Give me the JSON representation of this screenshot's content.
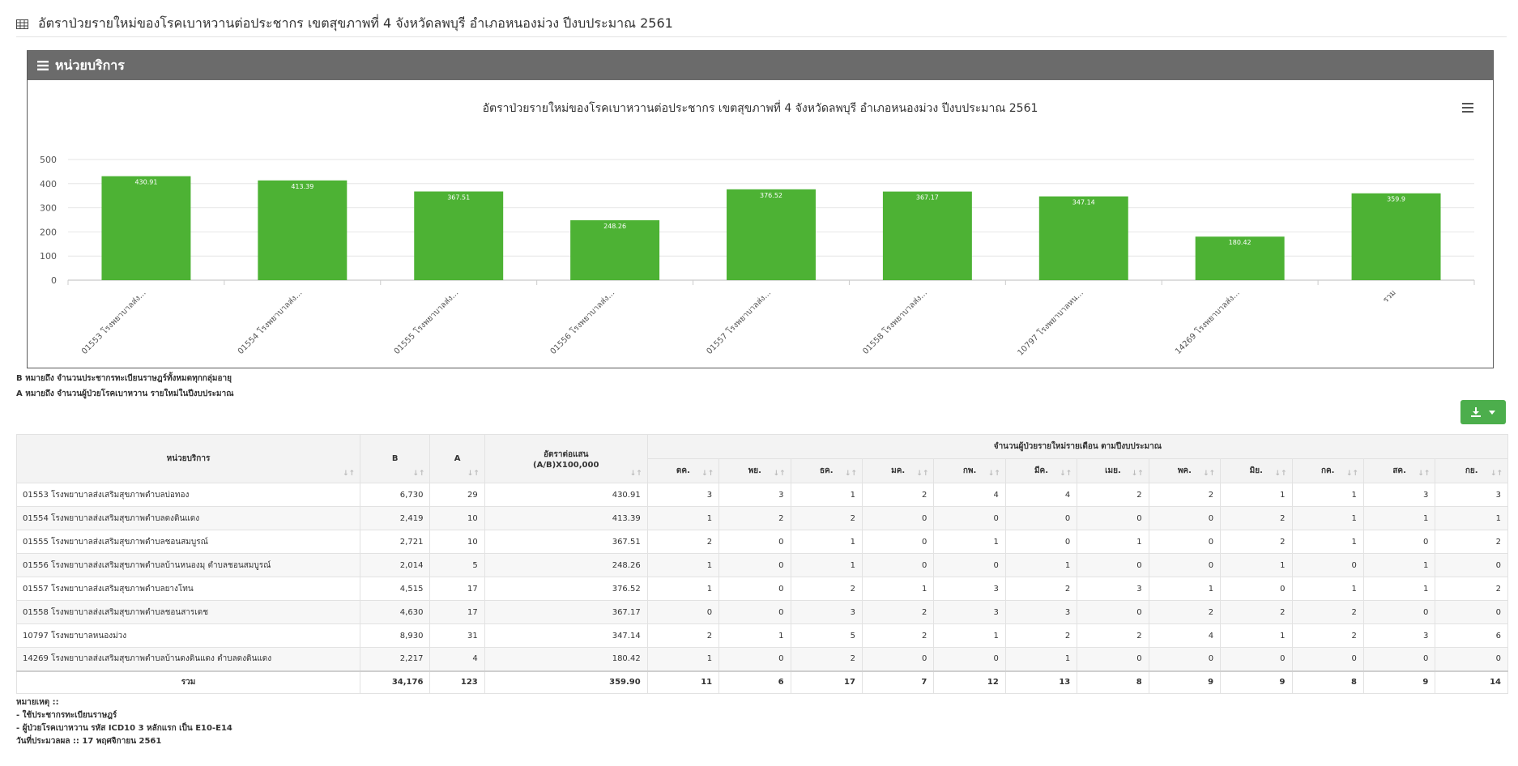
{
  "page": {
    "title": "อัตราป่วยรายใหม่ของโรคเบาหวานต่อประชากร เขตสุขภาพที่ 4 จังหวัดลพบุรี อำเภอหนองม่วง ปีงบประมาณ 2561"
  },
  "panel": {
    "heading": "หน่วยบริการ"
  },
  "chart_data": {
    "type": "bar",
    "title": "อัตราป่วยรายใหม่ของโรคเบาหวานต่อประชากร เขตสุขภาพที่ 4 จังหวัดลพบุรี อำเภอหนองม่วง ปีงบประมาณ 2561",
    "categories": [
      "01553 โรงพยาบาลส่ง...",
      "01554 โรงพยาบาลส่ง...",
      "01555 โรงพยาบาลส่ง...",
      "01556 โรงพยาบาลส่ง...",
      "01557 โรงพยาบาลส่ง...",
      "01558 โรงพยาบาลส่ง...",
      "10797 โรงพยาบาลหน...",
      "14269 โรงพยาบาลส่ง...",
      "รวม"
    ],
    "values": [
      430.91,
      413.39,
      367.51,
      248.26,
      376.52,
      367.17,
      347.14,
      180.42,
      359.9
    ],
    "value_labels": [
      "430.91",
      "413.39",
      "367.51",
      "248.26",
      "376.52",
      "367.17",
      "347.14",
      "180.42",
      "359.9"
    ],
    "yticks": [
      "0",
      "100",
      "200",
      "300",
      "400",
      "500"
    ],
    "ylim": [
      0,
      500
    ],
    "bar_color": "#4db234",
    "grid": true,
    "legend": "none"
  },
  "notes_top": {
    "b": "B หมายถึง จำนวนประชากรทะเบียนราษฎร์ทั้งหมดทุกกลุ่มอายุ",
    "a": "A หมายถึง จำนวนผู้ป่วยโรคเบาหวาน รายใหม่ในปีงบประมาณ"
  },
  "download": {
    "icon": "download-icon",
    "color": "#4cae4c"
  },
  "table": {
    "headers": {
      "unit": "หน่วยบริการ",
      "b": "B",
      "a": "A",
      "rate_line1": "อัตราต่อแสน",
      "rate_line2": "(A/B)X100,000",
      "monthly": "จำนวนผู้ป่วยรายใหม่รายเดือน ตามปีงบประมาณ",
      "months": [
        "ตค.",
        "พย.",
        "ธค.",
        "มค.",
        "กพ.",
        "มีค.",
        "เมย.",
        "พค.",
        "มิย.",
        "กค.",
        "สค.",
        "กย."
      ]
    },
    "rows": [
      {
        "name": "01553 โรงพยาบาลส่งเสริมสุขภาพตำบลบ่อทอง",
        "b": "6,730",
        "a": "29",
        "rate": "430.91",
        "m": [
          "3",
          "3",
          "1",
          "2",
          "4",
          "4",
          "2",
          "2",
          "1",
          "1",
          "3",
          "3"
        ]
      },
      {
        "name": "01554 โรงพยาบาลส่งเสริมสุขภาพตำบลดงดินแดง",
        "b": "2,419",
        "a": "10",
        "rate": "413.39",
        "m": [
          "1",
          "2",
          "2",
          "0",
          "0",
          "0",
          "0",
          "0",
          "2",
          "1",
          "1",
          "1"
        ]
      },
      {
        "name": "01555 โรงพยาบาลส่งเสริมสุขภาพตำบลชอนสมบูรณ์",
        "b": "2,721",
        "a": "10",
        "rate": "367.51",
        "m": [
          "2",
          "0",
          "1",
          "0",
          "1",
          "0",
          "1",
          "0",
          "2",
          "1",
          "0",
          "2"
        ]
      },
      {
        "name": "01556 โรงพยาบาลส่งเสริมสุขภาพตำบลบ้านหนองมุ ตำบลชอนสมบูรณ์",
        "b": "2,014",
        "a": "5",
        "rate": "248.26",
        "m": [
          "1",
          "0",
          "1",
          "0",
          "0",
          "1",
          "0",
          "0",
          "1",
          "0",
          "1",
          "0"
        ]
      },
      {
        "name": "01557 โรงพยาบาลส่งเสริมสุขภาพตำบลยางโทน",
        "b": "4,515",
        "a": "17",
        "rate": "376.52",
        "m": [
          "1",
          "0",
          "2",
          "1",
          "3",
          "2",
          "3",
          "1",
          "0",
          "1",
          "1",
          "2"
        ]
      },
      {
        "name": "01558 โรงพยาบาลส่งเสริมสุขภาพตำบลชอนสารเดช",
        "b": "4,630",
        "a": "17",
        "rate": "367.17",
        "m": [
          "0",
          "0",
          "3",
          "2",
          "3",
          "3",
          "0",
          "2",
          "2",
          "2",
          "0",
          "0"
        ]
      },
      {
        "name": "10797 โรงพยาบาลหนองม่วง",
        "b": "8,930",
        "a": "31",
        "rate": "347.14",
        "m": [
          "2",
          "1",
          "5",
          "2",
          "1",
          "2",
          "2",
          "4",
          "1",
          "2",
          "3",
          "6"
        ]
      },
      {
        "name": "14269 โรงพยาบาลส่งเสริมสุขภาพตำบลบ้านดงดินแดง ตำบลดงดินแดง",
        "b": "2,217",
        "a": "4",
        "rate": "180.42",
        "m": [
          "1",
          "0",
          "2",
          "0",
          "0",
          "1",
          "0",
          "0",
          "0",
          "0",
          "0",
          "0"
        ]
      }
    ],
    "total": {
      "name": "รวม",
      "b": "34,176",
      "a": "123",
      "rate": "359.90",
      "m": [
        "11",
        "6",
        "17",
        "7",
        "12",
        "13",
        "8",
        "9",
        "9",
        "8",
        "9",
        "14"
      ]
    }
  },
  "notes_bottom": {
    "title": "หมายเหตุ ::",
    "line1": "- ใช้ประชากรทะเบียนราษฎร์",
    "line2": "- ผู้ป่วยโรคเบาหวาน รหัส ICD10 3 หลักแรก เป็น E10-E14",
    "date": "วันที่ประมวลผล :: 17 พฤศจิกายน 2561"
  }
}
